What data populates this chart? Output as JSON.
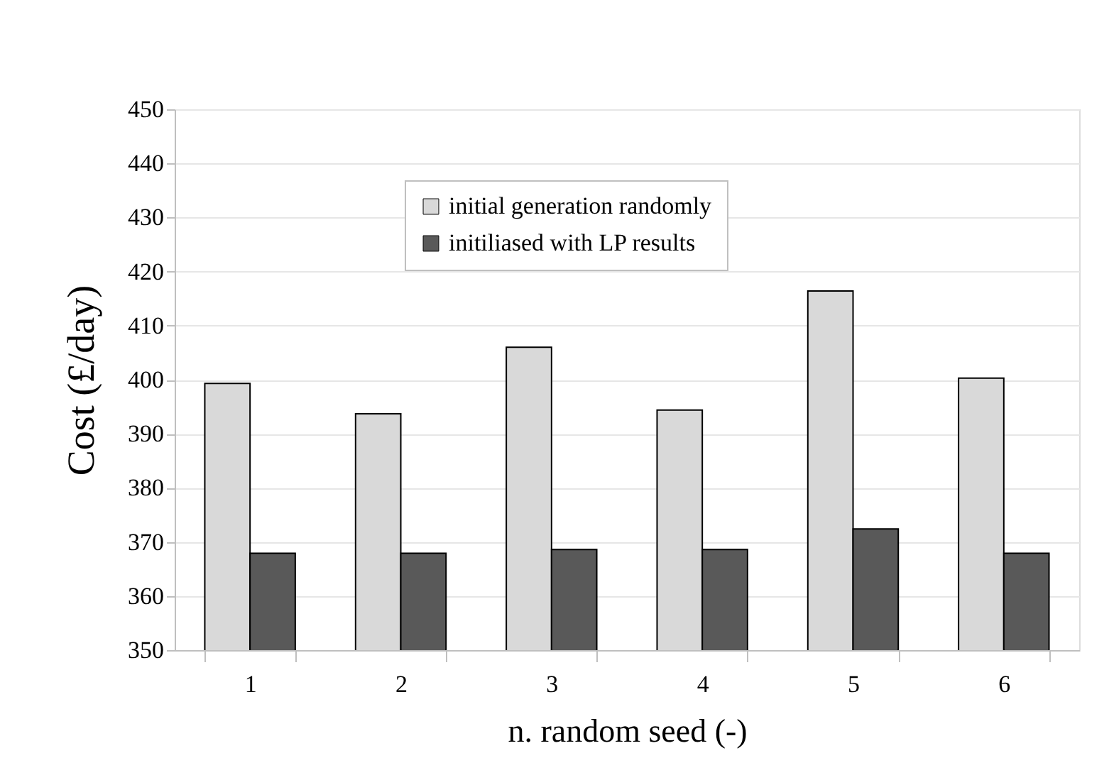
{
  "chart_data": {
    "type": "bar",
    "xlabel": "n. random seed (-)",
    "ylabel": "Cost (£/day)",
    "categories": [
      "1",
      "2",
      "3",
      "4",
      "5",
      "6"
    ],
    "series": [
      {
        "name": "initial generation randomly",
        "color": "#d9d9d9",
        "values": [
          399.3,
          393.7,
          406.0,
          394.4,
          416.4,
          400.3
        ]
      },
      {
        "name": "initiliased with LP results",
        "color": "#595959",
        "values": [
          367.9,
          367.9,
          368.6,
          368.6,
          372.4,
          367.9
        ]
      }
    ],
    "ylim": [
      350,
      450
    ],
    "yticks": [
      350,
      360,
      370,
      380,
      390,
      400,
      410,
      420,
      430,
      440,
      450
    ],
    "grid": "y",
    "legend": "top"
  }
}
